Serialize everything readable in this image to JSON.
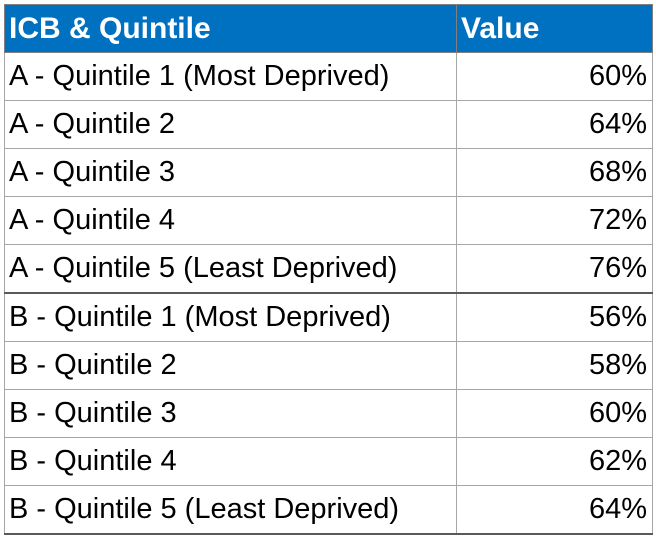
{
  "header": {
    "col1": "ICB & Quintile",
    "col2": "Value"
  },
  "rows": [
    {
      "label": "A - Quintile 1 (Most Deprived)",
      "value": "60%"
    },
    {
      "label": "A - Quintile 2",
      "value": "64%"
    },
    {
      "label": "A - Quintile 3",
      "value": "68%"
    },
    {
      "label": "A - Quintile 4",
      "value": "72%"
    },
    {
      "label": "A - Quintile 5 (Least Deprived)",
      "value": "76%"
    },
    {
      "label": "B - Quintile 1 (Most Deprived)",
      "value": "56%"
    },
    {
      "label": "B - Quintile 2",
      "value": "58%"
    },
    {
      "label": "B - Quintile 3",
      "value": "60%"
    },
    {
      "label": "B - Quintile 4",
      "value": "62%"
    },
    {
      "label": "B - Quintile 5 (Least Deprived)",
      "value": "64%"
    }
  ],
  "colors": {
    "header_bg": "#0070c0",
    "header_text": "#ffffff"
  }
}
